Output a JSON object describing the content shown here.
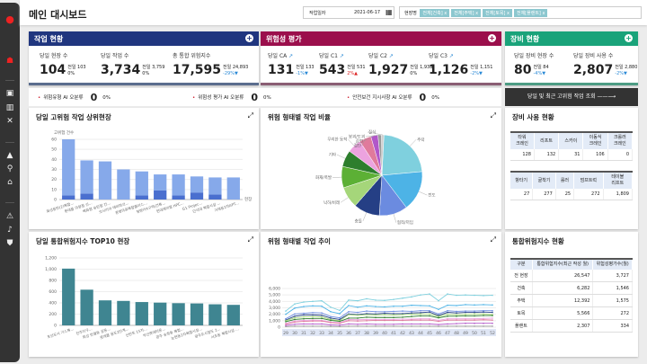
{
  "header": {
    "title": "메인 대시보드",
    "date_label": "작업일자",
    "date_value": "2021-06-17",
    "site_label": "현장명",
    "site_tags": [
      "전체[건축] x",
      "전체[주택] x",
      "전체[토목] x",
      "전체[플랜트] x"
    ]
  },
  "colors": {
    "work": "#20367f",
    "risk": "#9b0f4c",
    "equip": "#1aa37a",
    "bar_light": "#86a9ea",
    "bar_dark": "#4a6fcf",
    "bar_top10": "#3f8591"
  },
  "work": {
    "title": "작업 현황",
    "items": [
      {
        "label": "당일 현장 수",
        "value": "104",
        "prev": "전일 103",
        "change": "0%"
      },
      {
        "label": "당일 작업 수",
        "value": "3,734",
        "prev": "전일 3,759",
        "change": "0%"
      },
      {
        "label": "총 통합 위험지수",
        "value": "17,595",
        "prev": "전일 24,893",
        "change": "-29%▼"
      }
    ]
  },
  "risk": {
    "title": "위험성 평가",
    "items": [
      {
        "label": "당일 CA",
        "value": "131",
        "prev": "전일 133",
        "change": "-1%▼"
      },
      {
        "label": "당일 C1",
        "value": "543",
        "prev": "전일 531",
        "change": "2%▲"
      },
      {
        "label": "당일 C2",
        "value": "1,927",
        "prev": "전일 1,938",
        "change": "0%"
      },
      {
        "label": "당일 C3",
        "value": "1,126",
        "prev": "전일 1,151",
        "change": "-2%▼"
      }
    ]
  },
  "equip": {
    "title": "장비 현황",
    "items": [
      {
        "label": "당일 장비 현장 수",
        "value": "80",
        "prev": "전일 84",
        "change": "-4%▼"
      },
      {
        "label": "당일 장비 사용 수",
        "value": "2,807",
        "prev": "전일 2,880",
        "change": "-2%▼"
      }
    ]
  },
  "ai": [
    {
      "label": "위험유형 AI 오분류",
      "count": "0",
      "pct": "0%"
    },
    {
      "label": "위험성 평가 AI 오분류",
      "count": "0",
      "pct": "0%"
    },
    {
      "label": "안전보건 지시사항 AI 오분류",
      "count": "0",
      "pct": "0%"
    }
  ],
  "recent_button": "당일 및 최근 고위험 작업 조회 ——⟶",
  "equip_usage": {
    "title": "장비 사용 현황",
    "table1": {
      "headers": [
        "타워\n크레인",
        "리프트",
        "스카이",
        "이동식\n크레인",
        "크롤러\n크레인"
      ],
      "values": [
        "128",
        "132",
        "31",
        "106",
        "0"
      ]
    },
    "table2": {
      "headers": [
        "항타기",
        "굴착기",
        "롤러",
        "덤프트럭",
        "테이블\n리프트"
      ],
      "values": [
        "27",
        "277",
        "25",
        "272",
        "1,809"
      ]
    }
  },
  "index_status": {
    "title": "통합위험지수 현황",
    "headers": [
      "구분",
      "통합위험지수(최근 작성 월)",
      "위험성평가수(월)"
    ],
    "rows": [
      [
        "전 현장",
        "26,547",
        "3,727"
      ],
      [
        "건축",
        "6,282",
        "1,546"
      ],
      [
        "주택",
        "12,392",
        "1,575"
      ],
      [
        "토목",
        "5,566",
        "272"
      ],
      [
        "플랜트",
        "2,307",
        "334"
      ]
    ]
  },
  "chart_data": [
    {
      "id": "top_sites",
      "type": "bar",
      "title": "당일 고위험 작업 상위현장",
      "ylabel": "고위험 건수",
      "xlabel": "현장",
      "ylim": [
        0,
        60
      ],
      "yticks": [
        0,
        10,
        20,
        30,
        40,
        50,
        60
      ],
      "categories": [
        "화성동탄(2)복합...",
        "롯데몰 의왕점 신...",
        "백화점 송탄점 건...",
        "오시리아 테마파크...",
        "광명의료복합클러스...",
        "청량리4구역(건축...",
        "현대케미칼 HPC...",
        "G1 Projec...",
        "단석대 복합시설 ...",
        "거제동2차APT..."
      ],
      "series": [
        {
          "values": [
            4,
            6,
            0,
            0,
            4,
            9,
            4,
            7,
            5,
            0
          ]
        },
        {
          "values": [
            56,
            33,
            38,
            30,
            24,
            16,
            21,
            16,
            17,
            22
          ]
        }
      ],
      "stacked": true
    },
    {
      "id": "risk_pie",
      "type": "pie",
      "title": "위험 형태별 작업 비율",
      "labels": [
        "추락",
        "전도",
        "협착/끼임",
        "충돌",
        "낙하/비래",
        "화재/폭발",
        "기타",
        "무리한 동작",
        "절단",
        "감전",
        "붕괴/도괴",
        "질식"
      ],
      "values": [
        24,
        17,
        12,
        11,
        9,
        9,
        7,
        6,
        5,
        3,
        1.5,
        1
      ],
      "colors": [
        "#7fd0de",
        "#4db3e6",
        "#6b8be0",
        "#253f85",
        "#a5d67a",
        "#5cb035",
        "#2d7e2d",
        "#eca3df",
        "#e07a9c",
        "#b157c9",
        "#9a9a9a",
        "#cfcfcf"
      ]
    },
    {
      "id": "top10",
      "type": "bar",
      "title": "당일 통합위험지수 TOP10 현장",
      "ylim": [
        0,
        1200
      ],
      "yticks": [
        0,
        200,
        400,
        600,
        800,
        "1,000",
        "1,200"
      ],
      "categories": [
        "포선도시 기스복...",
        "진주지구...",
        "회성 반월동 공동...",
        "롯데몰 용도2단계...",
        "신반포 15차...",
        "부산롯데타운...",
        "광주 송정동 복합...",
        "논현동2차복합시설...",
        "광주도시철도 2...",
        "서초동 복합시설 ..."
      ],
      "values": [
        1010,
        635,
        445,
        435,
        415,
        405,
        395,
        390,
        375,
        365
      ]
    },
    {
      "id": "trend",
      "type": "line",
      "title": "위험 형태별 작업 추이",
      "ylim": [
        0,
        6000
      ],
      "yticks": [
        "0",
        "1,000",
        "2,000",
        "3,000",
        "4,000",
        "5,000",
        "6,000"
      ],
      "x": [
        29,
        30,
        31,
        32,
        33,
        34,
        35,
        36,
        37,
        38,
        39,
        40,
        41,
        42,
        43,
        44,
        45,
        46,
        47,
        48,
        49,
        50,
        51,
        52
      ],
      "series": [
        {
          "color": "#7fd0de",
          "values": [
            2500,
            3600,
            3900,
            4000,
            4100,
            3100,
            2600,
            4200,
            4100,
            4400,
            4200,
            4150,
            4300,
            4500,
            4700,
            5000,
            5150,
            4100,
            5150,
            4950,
            5000,
            4950,
            4900,
            4950
          ]
        },
        {
          "color": "#4db3e6",
          "values": [
            2000,
            2950,
            3200,
            3300,
            3250,
            2400,
            2100,
            3350,
            3100,
            3300,
            3200,
            3150,
            3250,
            3250,
            3400,
            3350,
            3300,
            2750,
            3400,
            3350,
            3500,
            3450,
            3500,
            3450
          ]
        },
        {
          "color": "#6b8be0",
          "values": [
            1300,
            2050,
            2150,
            2250,
            2200,
            1650,
            1450,
            2400,
            2300,
            2500,
            2400,
            2400,
            2450,
            2500,
            2450,
            2550,
            2550,
            2050,
            2550,
            2450,
            2500,
            2500,
            2550,
            2550
          ]
        },
        {
          "color": "#253f85",
          "values": [
            1100,
            1700,
            1900,
            1900,
            1850,
            1400,
            1200,
            2050,
            1950,
            2100,
            2050,
            2150,
            2100,
            2100,
            2200,
            2250,
            2350,
            1800,
            2300,
            2200,
            2300,
            2300,
            2350,
            2300
          ]
        },
        {
          "color": "#a5d67a",
          "values": [
            1000,
            1450,
            1600,
            1650,
            1600,
            1200,
            1000,
            1950,
            1850,
            1950,
            1900,
            1950,
            1900,
            1950,
            2000,
            2050,
            2050,
            1650,
            2000,
            1950,
            2000,
            2050,
            2050,
            1950
          ]
        },
        {
          "color": "#2d7e2d",
          "values": [
            850,
            1200,
            1300,
            1350,
            1350,
            1050,
            900,
            1400,
            1400,
            1550,
            1500,
            1500,
            1500,
            1550,
            1650,
            1750,
            1750,
            1450,
            1700,
            1700,
            1750,
            1750,
            1800,
            1800
          ]
        },
        {
          "color": "#eca3df",
          "values": [
            600,
            950,
            1050,
            1100,
            1050,
            800,
            700,
            1200,
            1150,
            1200,
            1200,
            1200,
            1200,
            1250,
            1250,
            1300,
            1300,
            1050,
            1300,
            1300,
            1300,
            1300,
            1350,
            1400
          ]
        },
        {
          "color": "#e07a9c",
          "values": [
            450,
            800,
            900,
            950,
            950,
            700,
            600,
            1000,
            950,
            1000,
            1050,
            1050,
            1050,
            1050,
            1100,
            1100,
            1100,
            900,
            1100,
            1100,
            1100,
            1100,
            1150,
            1100
          ]
        },
        {
          "color": "#b157c9",
          "values": [
            250,
            450,
            500,
            500,
            500,
            350,
            300,
            500,
            450,
            500,
            450,
            450,
            450,
            500,
            500,
            500,
            500,
            400,
            500,
            550,
            600,
            600,
            600,
            600
          ]
        },
        {
          "color": "#9a9a9a",
          "values": [
            100,
            150,
            150,
            150,
            150,
            120,
            100,
            150,
            150,
            150,
            150,
            150,
            150,
            150,
            150,
            150,
            150,
            130,
            150,
            150,
            150,
            150,
            150,
            150
          ]
        }
      ]
    }
  ]
}
